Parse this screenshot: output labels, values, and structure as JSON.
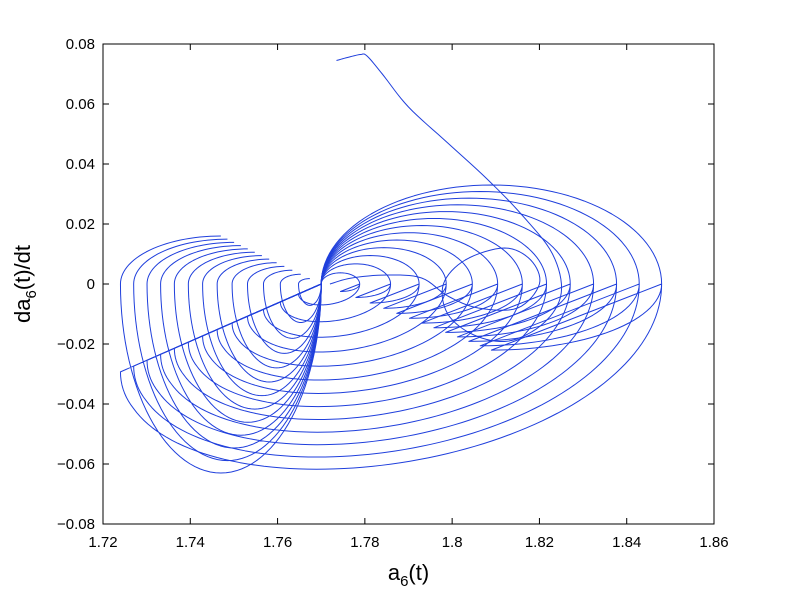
{
  "chart_data": {
    "type": "line",
    "title": "",
    "xlabel": {
      "base": "a",
      "sub": "6",
      "rest": "(t)"
    },
    "ylabel": {
      "pre": "da",
      "sub": "6",
      "rest": "(t)/dt"
    },
    "xlim": [
      1.72,
      1.86
    ],
    "ylim": [
      -0.08,
      0.08
    ],
    "xticks": [
      1.72,
      1.74,
      1.76,
      1.78,
      1.8,
      1.82,
      1.84,
      1.86
    ],
    "xtick_labels": [
      "1.72",
      "1.74",
      "1.76",
      "1.78",
      "1.8",
      "1.82",
      "1.84",
      "1.86"
    ],
    "yticks": [
      -0.08,
      -0.06,
      -0.04,
      -0.02,
      0,
      0.02,
      0.04,
      0.06,
      0.08
    ],
    "ytick_labels": [
      "−0.08",
      "−0.06",
      "−0.04",
      "−0.02",
      "0",
      "0.02",
      "0.04",
      "0.06",
      "0.08"
    ],
    "grid": false,
    "legend": "none",
    "series": [
      {
        "color": "#1f3fdc",
        "description_shape": "phase-space trajectory converging to a two-lobed limit-cycle attractor",
        "initial_transient": [
          [
            1.7735,
            0.0745
          ],
          [
            1.776,
            0.0755
          ],
          [
            1.779,
            0.0765
          ],
          [
            1.7805,
            0.076
          ],
          [
            1.784,
            0.07
          ],
          [
            1.79,
            0.059
          ],
          [
            1.799,
            0.047
          ],
          [
            1.808,
            0.035
          ],
          [
            1.816,
            0.023
          ],
          [
            1.823,
            0.01
          ],
          [
            1.825,
            -0.003
          ],
          [
            1.821,
            -0.013
          ],
          [
            1.813,
            -0.019
          ],
          [
            1.805,
            -0.017
          ],
          [
            1.799,
            -0.01
          ],
          [
            1.798,
            0.0
          ],
          [
            1.803,
            0.008
          ],
          [
            1.812,
            0.012
          ],
          [
            1.818,
            0.008
          ],
          [
            1.82,
            0.0
          ],
          [
            1.815,
            -0.008
          ],
          [
            1.806,
            -0.008
          ],
          [
            1.799,
            -0.004
          ],
          [
            1.793,
            0.002
          ],
          [
            1.785,
            0.003
          ],
          [
            1.777,
            0.002
          ],
          [
            1.772,
            0.0
          ]
        ],
        "lobes": {
          "left_outer": {
            "center": [
              1.77,
              0.0
            ],
            "x_min": 1.724,
            "y_min": -0.063,
            "y_max": 0.016
          },
          "right_outer": {
            "center": [
              1.77,
              0.0
            ],
            "x_max": 1.848,
            "y_max": 0.033,
            "y_min": -0.063
          },
          "cusp": [
            1.77,
            0.0
          ],
          "n_loops": 13
        }
      }
    ]
  }
}
